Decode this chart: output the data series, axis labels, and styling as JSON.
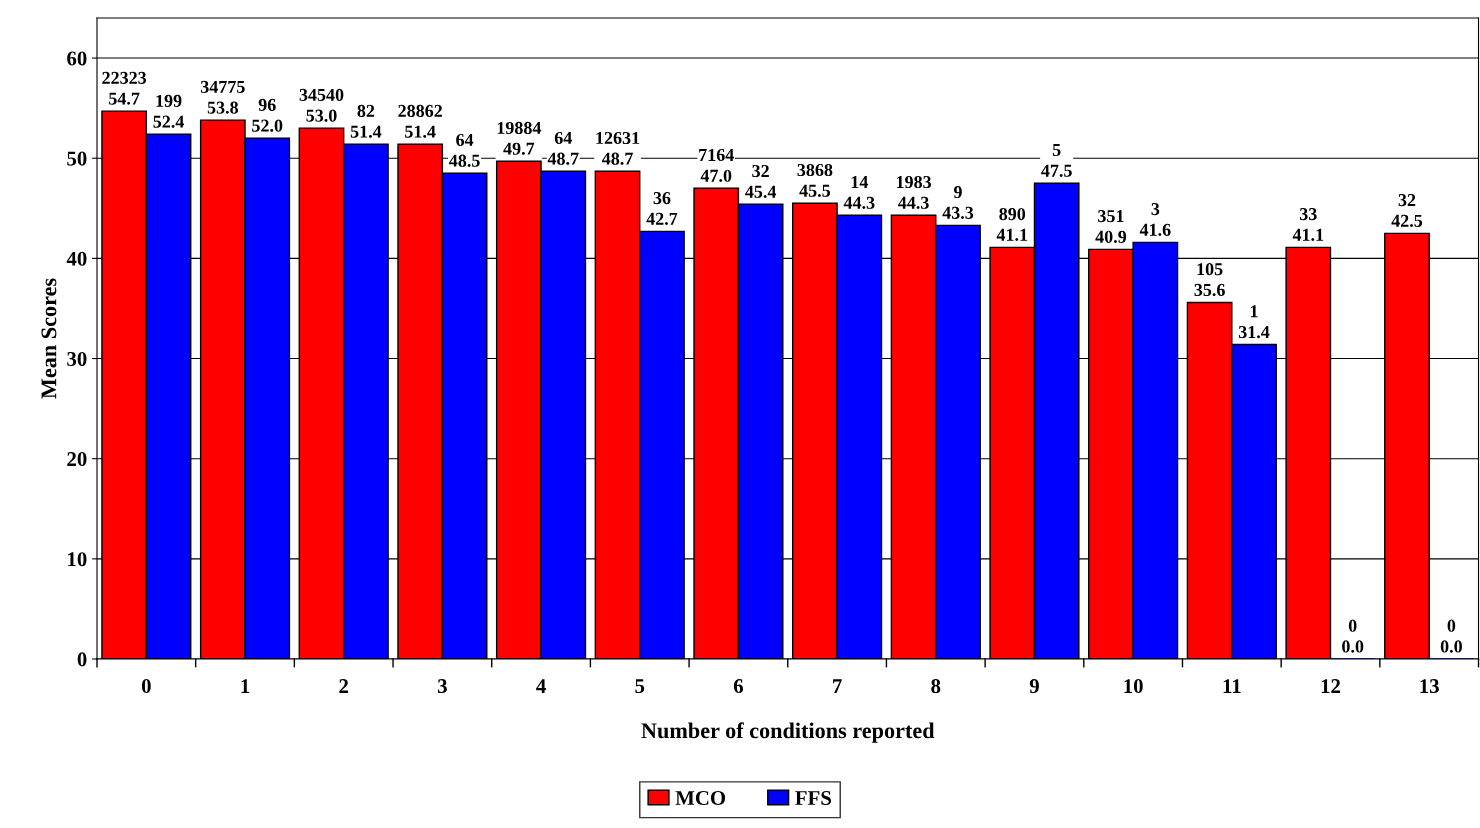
{
  "chart_data": {
    "type": "bar",
    "xlabel": "Number of conditions reported",
    "ylabel": "Mean Scores",
    "categories": [
      "0",
      "1",
      "2",
      "3",
      "4",
      "5",
      "6",
      "7",
      "8",
      "9",
      "10",
      "11",
      "12",
      "13"
    ],
    "series": [
      {
        "name": "MCO",
        "color": "#ff0000",
        "values": [
          54.7,
          53.8,
          53.0,
          51.4,
          49.7,
          48.7,
          47.0,
          45.5,
          44.3,
          41.1,
          40.9,
          35.6,
          41.1,
          42.5
        ],
        "value_labels": [
          "22323\n54.7",
          "34775\n53.8",
          "34540\n53.0",
          "28862\n51.4",
          "19884\n49.7",
          "12631\n48.7",
          "7164\n47.0",
          "3868\n45.5",
          "1983\n44.3",
          "890\n41.1",
          "351\n40.9",
          "105\n35.6",
          "33\n41.1",
          "32\n42.5"
        ]
      },
      {
        "name": "FFS",
        "color": "#0000ff",
        "values": [
          52.4,
          52.0,
          51.4,
          48.5,
          48.7,
          42.7,
          45.4,
          44.3,
          43.3,
          47.5,
          41.6,
          31.4,
          0.0,
          0.0
        ],
        "value_labels": [
          "199\n52.4",
          "96\n52.0",
          "82\n51.4",
          "64\n48.5",
          "64\n48.7",
          "36\n42.7",
          "32\n45.4",
          "14\n44.3",
          "9\n43.3",
          "5\n47.5",
          "3\n41.6",
          "1\n31.4",
          "0\n0.0",
          "0\n0.0"
        ]
      }
    ],
    "ylim": [
      0,
      64
    ],
    "yticks": [
      0,
      10,
      20,
      30,
      40,
      50,
      60
    ],
    "grid": "y",
    "legend": "bottom"
  }
}
